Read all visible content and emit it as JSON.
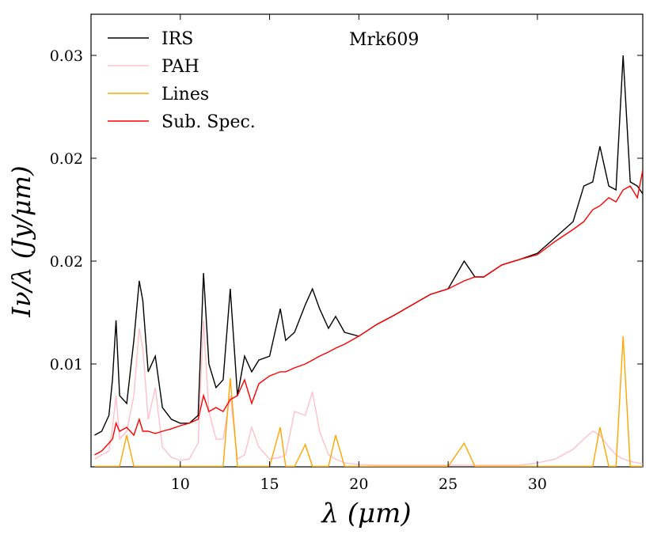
{
  "chart_data": {
    "type": "line",
    "annotation": "Mrk609",
    "xlabel": "λ (μm)",
    "ylabel": "Iν/λ (Jy/μm)",
    "x": [
      5.2,
      5.6,
      6.0,
      6.2,
      6.4,
      6.6,
      7.0,
      7.4,
      7.7,
      7.9,
      8.2,
      8.6,
      9.0,
      9.5,
      10.0,
      10.5,
      11.0,
      11.3,
      11.6,
      12.0,
      12.4,
      12.8,
      13.2,
      13.6,
      14.0,
      14.4,
      15.0,
      15.6,
      15.9,
      16.4,
      17.0,
      17.4,
      17.8,
      18.3,
      18.7,
      19.2,
      20,
      21,
      22,
      23,
      24,
      25,
      25.9,
      26.5,
      27,
      28,
      29,
      30,
      31,
      32,
      32.6,
      33.1,
      33.5,
      34,
      34.4,
      34.8,
      35.2,
      35.6,
      35.9
    ],
    "series": [
      {
        "name": "IRS",
        "color": "#000000",
        "values": [
          0.00654,
          0.00673,
          0.0075,
          0.00923,
          0.01212,
          0.00846,
          0.00808,
          0.01115,
          0.01404,
          0.01308,
          0.00962,
          0.01038,
          0.00788,
          0.00731,
          0.00712,
          0.00712,
          0.0075,
          0.01442,
          0.01,
          0.00885,
          0.00923,
          0.01365,
          0.00846,
          0.01038,
          0.00962,
          0.01019,
          0.01038,
          0.01269,
          0.01115,
          0.01154,
          0.01288,
          0.01365,
          0.01269,
          0.01173,
          0.01231,
          0.01154,
          0.01135,
          0.01192,
          0.01238,
          0.01288,
          0.01338,
          0.01365,
          0.015,
          0.01423,
          0.01423,
          0.01481,
          0.01508,
          0.01538,
          0.01615,
          0.01692,
          0.01865,
          0.01885,
          0.02058,
          0.01865,
          0.01846,
          0.025,
          0.01885,
          0.01865,
          0.01827
        ]
      },
      {
        "name": "PAH",
        "color": "#ffc0cb",
        "values": [
          0.00538,
          0.00558,
          0.00577,
          0.00692,
          0.00846,
          0.00635,
          0.00673,
          0.00846,
          0.01173,
          0.01077,
          0.00731,
          0.00885,
          0.00596,
          0.00546,
          0.00531,
          0.00538,
          0.00615,
          0.01212,
          0.00769,
          0.00635,
          0.00635,
          0.00846,
          0.00538,
          0.00558,
          0.00692,
          0.00596,
          0.00538,
          0.00546,
          0.00558,
          0.00769,
          0.0075,
          0.00865,
          0.00673,
          0.00558,
          0.00538,
          0.00519,
          0.00512,
          0.00508,
          0.00508,
          0.00508,
          0.00508,
          0.00508,
          0.00508,
          0.00508,
          0.00508,
          0.00508,
          0.00508,
          0.00519,
          0.00538,
          0.00585,
          0.00635,
          0.00673,
          0.00654,
          0.00596,
          0.00558,
          0.00538,
          0.00527,
          0.00519,
          0.00515
        ]
      },
      {
        "name": "Lines",
        "color": "#ffa500",
        "values": [
          0.00502,
          0.00502,
          0.00502,
          0.00502,
          0.00502,
          0.00502,
          0.00654,
          0.00502,
          0.00502,
          0.00502,
          0.00502,
          0.00502,
          0.00502,
          0.00502,
          0.00502,
          0.00502,
          0.00502,
          0.00502,
          0.00502,
          0.00502,
          0.00502,
          0.00931,
          0.00502,
          0.00502,
          0.00502,
          0.00502,
          0.00502,
          0.00692,
          0.00502,
          0.00502,
          0.00608,
          0.00502,
          0.00502,
          0.00502,
          0.00654,
          0.00502,
          0.00502,
          0.00502,
          0.00502,
          0.00502,
          0.00502,
          0.00502,
          0.00615,
          0.00502,
          0.00502,
          0.00502,
          0.00502,
          0.00502,
          0.00502,
          0.00502,
          0.00502,
          0.00502,
          0.00692,
          0.00502,
          0.00502,
          0.01135,
          0.00502,
          0.00502,
          0.00502
        ]
      },
      {
        "name": "Sub. Spec.",
        "color": "#ff0000",
        "values": [
          0.00558,
          0.00577,
          0.00615,
          0.00635,
          0.00712,
          0.00673,
          0.00692,
          0.00654,
          0.00731,
          0.00673,
          0.00673,
          0.00662,
          0.00673,
          0.00685,
          0.007,
          0.00712,
          0.00731,
          0.00846,
          0.00769,
          0.00788,
          0.00769,
          0.00827,
          0.00846,
          0.00923,
          0.00808,
          0.00904,
          0.00942,
          0.00962,
          0.00962,
          0.00981,
          0.01,
          0.01019,
          0.01038,
          0.01058,
          0.01077,
          0.01096,
          0.01135,
          0.01192,
          0.01238,
          0.01288,
          0.01338,
          0.01365,
          0.01404,
          0.01423,
          0.01423,
          0.01481,
          0.01508,
          0.01531,
          0.01596,
          0.01654,
          0.01692,
          0.0175,
          0.01769,
          0.01808,
          0.01788,
          0.01846,
          0.01865,
          0.01808,
          0.01942
        ]
      }
    ],
    "xlim": [
      5.0,
      35.9
    ],
    "xticks": [
      10,
      15,
      20,
      25,
      30
    ],
    "ylim": [
      0.005,
      0.027
    ],
    "yticks": [
      0.01,
      {
        "value": 0.015,
        "label": "0.02"
      },
      0.02,
      {
        "value": 0.025,
        "label": "0.03"
      }
    ],
    "legend": "upper left"
  }
}
